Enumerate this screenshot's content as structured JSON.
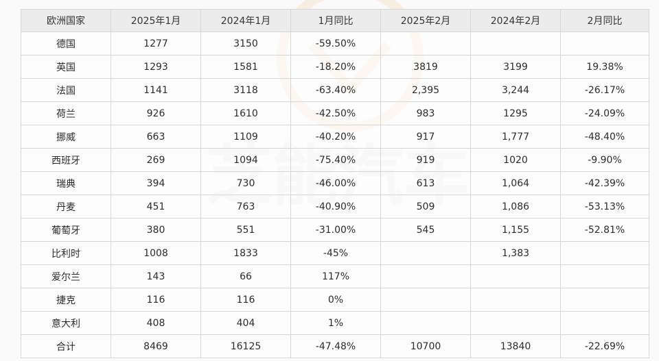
{
  "table": {
    "headers": [
      "欧洲国家",
      "2025年1月",
      "2024年1月",
      "1月同比",
      "2025年2月",
      "2024年2月",
      "2月同比"
    ],
    "rows": [
      [
        "德国",
        "1277",
        "3150",
        "-59.50%",
        "",
        "",
        ""
      ],
      [
        "英国",
        "1293",
        "1581",
        "-18.20%",
        "3819",
        "3199",
        "19.38%"
      ],
      [
        "法国",
        "1141",
        "3118",
        "-63.40%",
        "2,395",
        "3,244",
        "-26.17%"
      ],
      [
        "荷兰",
        "926",
        "1610",
        "-42.50%",
        "983",
        "1295",
        "-24.09%"
      ],
      [
        "挪威",
        "663",
        "1109",
        "-40.20%",
        "917",
        "1,777",
        "-48.40%"
      ],
      [
        "西班牙",
        "269",
        "1094",
        "-75.40%",
        "919",
        "1020",
        "-9.90%"
      ],
      [
        "瑞典",
        "394",
        "730",
        "-46.00%",
        "613",
        "1,064",
        "-42.39%"
      ],
      [
        "丹麦",
        "451",
        "763",
        "-40.90%",
        "509",
        "1,086",
        "-53.13%"
      ],
      [
        "葡萄牙",
        "380",
        "551",
        "-31.00%",
        "545",
        "1,155",
        "-52.81%"
      ],
      [
        "比利时",
        "1008",
        "1833",
        "-45%",
        "",
        "1,383",
        ""
      ],
      [
        "爱尔兰",
        "143",
        "66",
        "117%",
        "",
        "",
        ""
      ],
      [
        "捷克",
        "116",
        "116",
        "0%",
        "",
        "",
        ""
      ],
      [
        "意大利",
        "408",
        "404",
        "1%",
        "",
        "",
        ""
      ],
      [
        "合计",
        "8469",
        "16125",
        "-47.48%",
        "10700",
        "13840",
        "-22.69%"
      ]
    ]
  },
  "watermark": {
    "text": "芝能汽车"
  },
  "colors": {
    "header_bg": "#ececec",
    "border": "#d6d6d6",
    "text": "#2b2b2b",
    "watermark": "#e9e9e9",
    "watermark_logo": "#f6e7d6"
  }
}
